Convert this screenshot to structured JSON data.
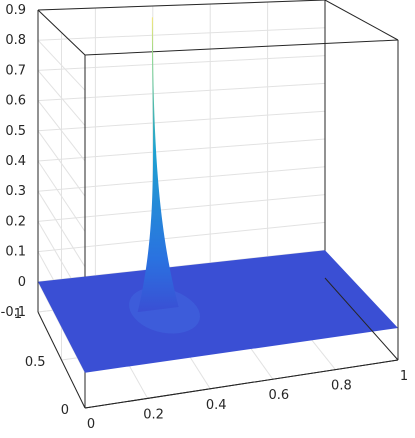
{
  "chart_data": {
    "type": "surface",
    "title": "",
    "xlabel": "",
    "ylabel": "",
    "zlabel": "",
    "xlim": [
      0,
      1
    ],
    "ylim": [
      0,
      1
    ],
    "zlim": [
      -0.1,
      0.9
    ],
    "x_ticks": [
      "0",
      "0.2",
      "0.4",
      "0.6",
      "0.8",
      "1"
    ],
    "y_ticks": [
      "0",
      "0.5",
      "1"
    ],
    "z_ticks": [
      "-0.1",
      "0",
      "0.1",
      "0.2",
      "0.3",
      "0.4",
      "0.5",
      "0.6",
      "0.7",
      "0.8",
      "0.9"
    ],
    "grid": true,
    "box": true,
    "colormap": "parula",
    "surface": {
      "description_type": "sharp spike",
      "base_value": 0,
      "peak": {
        "x": 0.35,
        "y": 0.75,
        "z": 0.9
      },
      "spread_x": 0.06,
      "spread_y": 0.35
    },
    "colors": {
      "flat_surface": "#3a4fd4",
      "spike_mid": "#1fa2d0",
      "spike_top": "#f5e86a"
    }
  }
}
